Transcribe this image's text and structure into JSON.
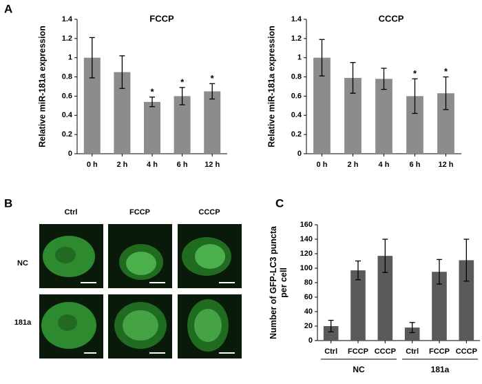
{
  "panels": {
    "a": "A",
    "b": "B",
    "c": "C"
  },
  "panel_b": {
    "columns": [
      "Ctrl",
      "FCCP",
      "CCCP"
    ],
    "rows": [
      "NC",
      "181a"
    ]
  },
  "chart_data": [
    {
      "type": "bar",
      "title": "FCCP",
      "y_label": [
        "Relative miR-181a expression"
      ],
      "categories": [
        "0 h",
        "2 h",
        "4 h",
        "6 h",
        "12 h"
      ],
      "values": [
        1.0,
        0.85,
        0.54,
        0.6,
        0.65
      ],
      "errors": [
        0.21,
        0.17,
        0.05,
        0.09,
        0.08
      ],
      "annotations": [
        null,
        null,
        "*",
        "*",
        "*"
      ],
      "color": "#8c8c8c",
      "ylim": [
        0,
        1.4
      ],
      "yticks": [
        0,
        0.2,
        0.4,
        0.6,
        0.8,
        1,
        1.2,
        1.4
      ]
    },
    {
      "type": "bar",
      "title": "CCCP",
      "y_label": [
        "Relative miR-181a expression"
      ],
      "categories": [
        "0 h",
        "2 h",
        "4 h",
        "6 h",
        "12 h"
      ],
      "values": [
        1.0,
        0.79,
        0.78,
        0.6,
        0.63
      ],
      "errors": [
        0.19,
        0.16,
        0.11,
        0.18,
        0.17
      ],
      "annotations": [
        null,
        null,
        null,
        "*",
        "*"
      ],
      "color": "#8c8c8c",
      "ylim": [
        0,
        1.4
      ],
      "yticks": [
        0,
        0.2,
        0.4,
        0.6,
        0.8,
        1,
        1.2,
        1.4
      ]
    },
    {
      "type": "bar",
      "y_label": [
        "Number of GFP-LC3 puncta",
        "per cell"
      ],
      "categories": [
        "Ctrl",
        "FCCP",
        "CCCP",
        "Ctrl",
        "FCCP",
        "CCCP"
      ],
      "groups": [
        "NC",
        "181a"
      ],
      "values": [
        20,
        97,
        117,
        18,
        95,
        111
      ],
      "errors": [
        8,
        13,
        23,
        7,
        17,
        29
      ],
      "color": "#5a5a5a",
      "ylim": [
        0,
        160
      ],
      "yticks": [
        0,
        20,
        40,
        60,
        80,
        100,
        120,
        140,
        160
      ]
    }
  ]
}
